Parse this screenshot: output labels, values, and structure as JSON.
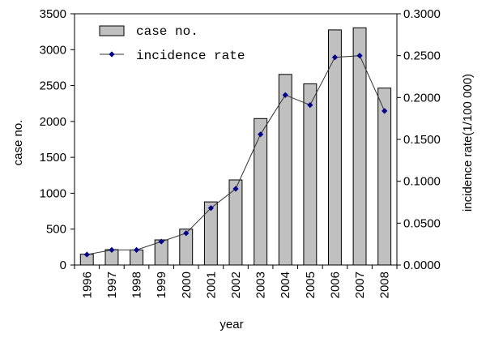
{
  "chart_data": {
    "type": "bar+line",
    "categories": [
      "1996",
      "1997",
      "1998",
      "1999",
      "2000",
      "2001",
      "2002",
      "2003",
      "2004",
      "2005",
      "2006",
      "2007",
      "2008"
    ],
    "series": [
      {
        "name": "case no.",
        "type": "bar",
        "axis": "left",
        "color": "#c0c0c0",
        "values": [
          150,
          215,
          210,
          350,
          500,
          880,
          1185,
          2040,
          2655,
          2525,
          3275,
          3305,
          2465
        ]
      },
      {
        "name": "incidence rate",
        "type": "line",
        "axis": "right",
        "color": "#00008b",
        "values": [
          0.0125,
          0.018,
          0.018,
          0.028,
          0.038,
          0.068,
          0.091,
          0.156,
          0.203,
          0.191,
          0.248,
          0.25,
          0.184
        ]
      }
    ],
    "xlabel": "year",
    "ylabel_left": "case no.",
    "ylabel_right": "incidence rate(1/100 000)",
    "ylim_left": [
      0,
      3500
    ],
    "ylim_right": [
      0,
      0.3
    ],
    "yticks_left": [
      "0",
      "500",
      "1000",
      "1500",
      "2000",
      "2500",
      "3000",
      "3500"
    ],
    "yticks_right": [
      "0.0000",
      "0.0500",
      "0.1000",
      "0.1500",
      "0.2000",
      "0.2500",
      "0.3000"
    ],
    "grid": false,
    "legend_position": "top-left"
  }
}
